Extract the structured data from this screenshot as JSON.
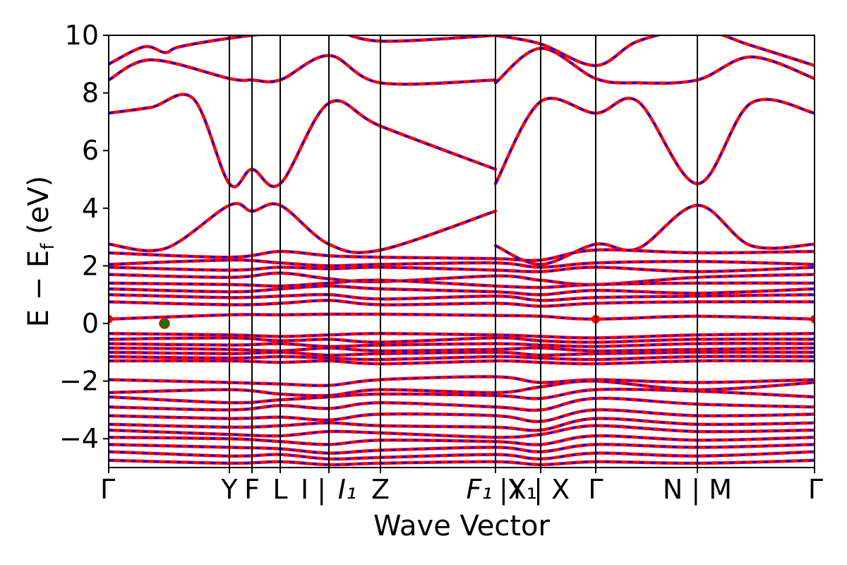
{
  "chart_data": {
    "type": "line",
    "xlabel": "Wave Vector",
    "ylabel": {
      "prefix": "E − E",
      "subscript": "f",
      "suffix": " (eV)"
    },
    "ylim": [
      -5,
      10
    ],
    "yticks": [
      {
        "value": -4,
        "label": "−4"
      },
      {
        "value": -2,
        "label": "−2"
      },
      {
        "value": 0,
        "label": "0"
      },
      {
        "value": 2,
        "label": "2"
      },
      {
        "value": 4,
        "label": "4"
      },
      {
        "value": 6,
        "label": "6"
      },
      {
        "value": 8,
        "label": "8"
      },
      {
        "value": 10,
        "label": "10"
      }
    ],
    "high_symmetry_points": [
      {
        "k": 0.0,
        "label": "Γ"
      },
      {
        "k": 0.171,
        "label": "Y"
      },
      {
        "k": 0.203,
        "label": "F"
      },
      {
        "k": 0.243,
        "label": "L"
      },
      {
        "k": 0.312,
        "label": "I | I₁"
      },
      {
        "k": 0.385,
        "label": "Z"
      },
      {
        "k": 0.548,
        "label": "F₁ | X₁"
      },
      {
        "k": 0.612,
        "label": "Y | X"
      },
      {
        "k": 0.69,
        "label": "Γ"
      },
      {
        "k": 0.834,
        "label": "N | M"
      },
      {
        "k": 1.0,
        "label": "Γ"
      }
    ],
    "xtick_labels": [
      {
        "k": 0.0,
        "text": "Γ",
        "italic": false
      },
      {
        "k": 0.171,
        "text": "Y",
        "italic": false
      },
      {
        "k": 0.203,
        "text": "F",
        "italic": false
      },
      {
        "k": 0.243,
        "text": "L",
        "italic": false
      },
      {
        "k": 0.29,
        "text": "I |",
        "italic": false
      },
      {
        "k": 0.338,
        "text": "I₁",
        "italic": true
      },
      {
        "k": 0.385,
        "text": "Z",
        "italic": false
      },
      {
        "k": 0.525,
        "text": "F₁",
        "italic": true
      },
      {
        "k": 0.58,
        "text": "|X₁",
        "italic": false
      },
      {
        "k": 0.61,
        "text": "Y | X",
        "italic": false
      },
      {
        "k": 0.69,
        "text": "Γ",
        "italic": false
      },
      {
        "k": 0.834,
        "text": "N | M",
        "italic": false
      },
      {
        "k": 1.0,
        "text": "Γ",
        "italic": false
      }
    ],
    "grid": false,
    "legend": "none",
    "style": {
      "solid_color": "#ff0000",
      "dashed_color": "#0000ff",
      "marker_red": "#ff0000",
      "marker_green": "#008000"
    },
    "markers": [
      {
        "k": 0.0,
        "e": 0.15,
        "color": "red",
        "kind": "band-edge"
      },
      {
        "k": 0.079,
        "e": 0.0,
        "color": "green",
        "kind": "fermi-point"
      },
      {
        "k": 0.69,
        "e": 0.15,
        "color": "red",
        "kind": "band-edge"
      },
      {
        "k": 1.0,
        "e": 0.15,
        "color": "red",
        "kind": "band-edge"
      }
    ],
    "series": [
      {
        "k": [
          0,
          0.06,
          0.12,
          0.171,
          0.203,
          0.243,
          0.312,
          0.385,
          0.548
        ],
        "e": [
          7.3,
          7.5,
          7.8,
          4.85,
          5.35,
          4.85,
          7.65,
          6.85,
          5.35
        ]
      },
      {
        "k": [
          0.548,
          0.612,
          0.69,
          0.75,
          0.834,
          0.91,
          1.0
        ],
        "e": [
          4.85,
          7.7,
          7.3,
          7.7,
          4.85,
          7.65,
          7.3
        ]
      },
      {
        "k": [
          0,
          0.06,
          0.171,
          0.203,
          0.243,
          0.312,
          0.385,
          0.548
        ],
        "e": [
          8.45,
          9.15,
          8.5,
          8.45,
          8.45,
          9.3,
          8.35,
          8.45
        ]
      },
      {
        "k": [
          0.548,
          0.612,
          0.69,
          0.75,
          0.834,
          0.91,
          1.0
        ],
        "e": [
          8.35,
          9.55,
          8.5,
          8.35,
          8.45,
          9.25,
          8.5
        ]
      },
      {
        "k": [
          0,
          0.05,
          0.08,
          0.1,
          0.171,
          0.243,
          0.312,
          0.385,
          0.548
        ],
        "e": [
          9.0,
          9.6,
          9.4,
          9.6,
          9.9,
          10.1,
          10.2,
          9.8,
          10.0
        ]
      },
      {
        "k": [
          0.548,
          0.612,
          0.69,
          0.75,
          0.834,
          0.91,
          1.0
        ],
        "e": [
          10.0,
          9.7,
          8.95,
          9.8,
          10.2,
          9.65,
          8.95
        ]
      },
      {
        "k": [
          0,
          0.08,
          0.171,
          0.203,
          0.243,
          0.312,
          0.385,
          0.548
        ],
        "e": [
          2.75,
          2.6,
          4.1,
          3.9,
          4.1,
          2.75,
          2.55,
          3.9
        ]
      },
      {
        "k": [
          0.548,
          0.612,
          0.69,
          0.75,
          0.834,
          0.91,
          1.0
        ],
        "e": [
          2.7,
          2.05,
          2.75,
          2.6,
          4.1,
          2.7,
          2.75
        ]
      },
      {
        "k": [
          0,
          0.171,
          0.243,
          0.312,
          0.385,
          0.548,
          0.612,
          0.69,
          0.834,
          1.0
        ],
        "e": [
          2.45,
          2.3,
          2.5,
          2.35,
          2.3,
          2.25,
          2.2,
          2.55,
          2.45,
          2.5
        ]
      },
      {
        "k": [
          0,
          0.171,
          0.243,
          0.312,
          0.385,
          0.548,
          0.612,
          0.69,
          0.834,
          1.0
        ],
        "e": [
          2.05,
          2.2,
          2.1,
          2.0,
          2.05,
          2.1,
          1.95,
          2.1,
          2.15,
          2.05
        ]
      },
      {
        "k": [
          0,
          0.171,
          0.243,
          0.312,
          0.385,
          0.548,
          0.612,
          0.69,
          0.834,
          1.0
        ],
        "e": [
          1.95,
          1.85,
          1.95,
          1.9,
          1.95,
          1.85,
          1.8,
          1.95,
          1.8,
          1.95
        ]
      },
      {
        "k": [
          0,
          0.171,
          0.243,
          0.312,
          0.385,
          0.548,
          0.612,
          0.69,
          0.834,
          1.0
        ],
        "e": [
          1.7,
          1.6,
          1.75,
          1.55,
          1.45,
          1.65,
          1.5,
          1.35,
          1.6,
          1.7
        ]
      },
      {
        "k": [
          0,
          0.171,
          0.243,
          0.312,
          0.385,
          0.548,
          0.612,
          0.69,
          0.834,
          1.0
        ],
        "e": [
          1.4,
          1.35,
          1.3,
          1.4,
          1.5,
          1.3,
          1.25,
          1.35,
          1.4,
          1.4
        ]
      },
      {
        "k": [
          0,
          0.171,
          0.243,
          0.312,
          0.385,
          0.548,
          0.612,
          0.69,
          0.834,
          1.0
        ],
        "e": [
          1.2,
          1.1,
          1.2,
          1.3,
          1.2,
          1.1,
          1.0,
          1.15,
          1.05,
          1.2
        ]
      },
      {
        "k": [
          0,
          0.171,
          0.243,
          0.312,
          0.385,
          0.548,
          0.612,
          0.69,
          0.834,
          1.0
        ],
        "e": [
          1.0,
          0.9,
          0.95,
          1.0,
          0.85,
          0.95,
          0.8,
          0.9,
          0.95,
          1.0
        ]
      },
      {
        "k": [
          0,
          0.171,
          0.243,
          0.312,
          0.385,
          0.548,
          0.612,
          0.69,
          0.834,
          1.0
        ],
        "e": [
          0.75,
          0.65,
          0.7,
          0.8,
          0.65,
          0.7,
          0.6,
          0.7,
          0.75,
          0.75
        ]
      },
      {
        "k": [
          0,
          0.171,
          0.243,
          0.312,
          0.385,
          0.548,
          0.612,
          0.69,
          0.834,
          1.0
        ],
        "e": [
          0.15,
          0.3,
          0.3,
          0.32,
          0.32,
          0.28,
          0.25,
          0.15,
          0.25,
          0.15
        ]
      },
      {
        "k": [
          0,
          0.171,
          0.243,
          0.312,
          0.385,
          0.548,
          0.612,
          0.69,
          0.834,
          1.0
        ],
        "e": [
          -0.35,
          -0.4,
          -0.45,
          -0.4,
          -0.35,
          -0.4,
          -0.45,
          -0.5,
          -0.4,
          -0.35
        ]
      },
      {
        "k": [
          0,
          0.171,
          0.243,
          0.312,
          0.385,
          0.548,
          0.612,
          0.69,
          0.834,
          1.0
        ],
        "e": [
          -0.55,
          -0.5,
          -0.6,
          -0.55,
          -0.65,
          -0.5,
          -0.6,
          -0.65,
          -0.55,
          -0.55
        ]
      },
      {
        "k": [
          0,
          0.171,
          0.243,
          0.312,
          0.385,
          0.548,
          0.612,
          0.69,
          0.834,
          1.0
        ],
        "e": [
          -0.7,
          -0.75,
          -0.7,
          -0.8,
          -0.75,
          -0.7,
          -0.75,
          -0.8,
          -0.7,
          -0.7
        ]
      },
      {
        "k": [
          0,
          0.171,
          0.243,
          0.312,
          0.385,
          0.548,
          0.612,
          0.69,
          0.834,
          1.0
        ],
        "e": [
          -0.85,
          -0.9,
          -0.95,
          -0.85,
          -0.95,
          -0.9,
          -0.85,
          -0.95,
          -0.9,
          -0.85
        ]
      },
      {
        "k": [
          0,
          0.171,
          0.243,
          0.312,
          0.385,
          0.548,
          0.612,
          0.69,
          0.834,
          1.0
        ],
        "e": [
          -1.0,
          -1.05,
          -1.0,
          -1.1,
          -1.05,
          -1.0,
          -1.1,
          -1.05,
          -1.0,
          -1.0
        ]
      },
      {
        "k": [
          0,
          0.171,
          0.243,
          0.312,
          0.385,
          0.548,
          0.612,
          0.69,
          0.834,
          1.0
        ],
        "e": [
          -1.15,
          -1.2,
          -1.15,
          -1.2,
          -1.25,
          -1.15,
          -1.2,
          -1.25,
          -1.15,
          -1.15
        ]
      },
      {
        "k": [
          0,
          0.171,
          0.243,
          0.312,
          0.385,
          0.548,
          0.612,
          0.69,
          0.834,
          1.0
        ],
        "e": [
          -1.3,
          -1.3,
          -1.35,
          -1.3,
          -1.4,
          -1.3,
          -1.35,
          -1.4,
          -1.3,
          -1.3
        ]
      },
      {
        "k": [
          0,
          0.171,
          0.243,
          0.312,
          0.385,
          0.548,
          0.612,
          0.69,
          0.834,
          1.0
        ],
        "e": [
          -1.95,
          -2.05,
          -2.1,
          -2.15,
          -1.95,
          -1.85,
          -2.05,
          -1.95,
          -2.05,
          -1.95
        ]
      },
      {
        "k": [
          0,
          0.171,
          0.243,
          0.312,
          0.385,
          0.548,
          0.612,
          0.69,
          0.834,
          1.0
        ],
        "e": [
          -2.4,
          -2.3,
          -2.45,
          -2.5,
          -2.3,
          -2.4,
          -2.2,
          -2.0,
          -2.3,
          -2.05
        ]
      },
      {
        "k": [
          0,
          0.171,
          0.243,
          0.312,
          0.385,
          0.548,
          0.612,
          0.69,
          0.834,
          1.0
        ],
        "e": [
          -2.55,
          -2.75,
          -2.65,
          -2.55,
          -2.45,
          -2.5,
          -2.6,
          -2.3,
          -2.35,
          -2.55
        ]
      },
      {
        "k": [
          0,
          0.171,
          0.243,
          0.312,
          0.385,
          0.548,
          0.612,
          0.69,
          0.834,
          1.0
        ],
        "e": [
          -2.9,
          -3.0,
          -2.85,
          -2.95,
          -2.75,
          -2.9,
          -3.0,
          -2.6,
          -2.8,
          -2.9
        ]
      },
      {
        "k": [
          0,
          0.171,
          0.243,
          0.312,
          0.385,
          0.548,
          0.612,
          0.69,
          0.834,
          1.0
        ],
        "e": [
          -3.2,
          -3.3,
          -3.25,
          -3.35,
          -3.15,
          -3.2,
          -3.4,
          -3.0,
          -3.2,
          -3.15
        ]
      },
      {
        "k": [
          0,
          0.171,
          0.243,
          0.312,
          0.385,
          0.548,
          0.612,
          0.69,
          0.834,
          1.0
        ],
        "e": [
          -3.5,
          -3.6,
          -3.55,
          -3.45,
          -3.55,
          -3.6,
          -3.7,
          -3.3,
          -3.5,
          -3.45
        ]
      },
      {
        "k": [
          0,
          0.171,
          0.243,
          0.312,
          0.385,
          0.548,
          0.612,
          0.69,
          0.834,
          1.0
        ],
        "e": [
          -3.7,
          -3.85,
          -3.9,
          -3.75,
          -3.8,
          -3.95,
          -3.85,
          -3.55,
          -3.75,
          -3.7
        ]
      },
      {
        "k": [
          0,
          0.171,
          0.243,
          0.312,
          0.385,
          0.548,
          0.612,
          0.69,
          0.834,
          1.0
        ],
        "e": [
          -3.95,
          -4.0,
          -4.1,
          -4.2,
          -4.05,
          -4.1,
          -4.2,
          -3.9,
          -4.05,
          -3.95
        ]
      },
      {
        "k": [
          0,
          0.171,
          0.243,
          0.312,
          0.385,
          0.548,
          0.612,
          0.69,
          0.834,
          1.0
        ],
        "e": [
          -4.2,
          -4.3,
          -4.35,
          -4.5,
          -4.4,
          -4.3,
          -4.45,
          -4.2,
          -4.3,
          -4.2
        ]
      },
      {
        "k": [
          0,
          0.171,
          0.243,
          0.312,
          0.385,
          0.548,
          0.612,
          0.69,
          0.834,
          1.0
        ],
        "e": [
          -4.45,
          -4.6,
          -4.55,
          -4.7,
          -4.65,
          -4.55,
          -4.7,
          -4.5,
          -4.6,
          -4.45
        ]
      },
      {
        "k": [
          0,
          0.171,
          0.243,
          0.312,
          0.385,
          0.548,
          0.612,
          0.69,
          0.834,
          1.0
        ],
        "e": [
          -4.75,
          -4.85,
          -4.8,
          -4.9,
          -4.85,
          -4.8,
          -4.9,
          -4.8,
          -4.85,
          -4.75
        ]
      }
    ]
  }
}
